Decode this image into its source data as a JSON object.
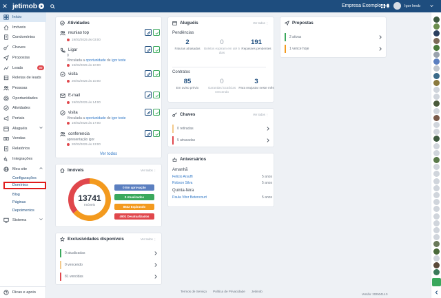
{
  "topbar": {
    "close_icon": "close-icon",
    "brand": "jetimob",
    "company": "Empresa Exemplo",
    "user": "Igor Imob"
  },
  "sidebar": {
    "items": [
      {
        "label": "Início",
        "icon": "grid-icon",
        "active": true
      },
      {
        "label": "Imóveis",
        "icon": "home-icon"
      },
      {
        "label": "Condomínios",
        "icon": "building-icon"
      },
      {
        "label": "Chaves",
        "icon": "key-icon"
      },
      {
        "label": "Propostas",
        "icon": "send-icon"
      },
      {
        "label": "Leads",
        "icon": "leads-icon",
        "badge": "99"
      },
      {
        "label": "Roletas de leads",
        "icon": "roulette-icon"
      },
      {
        "label": "Pessoas",
        "icon": "people-icon"
      },
      {
        "label": "Oportunidades",
        "icon": "target-icon"
      },
      {
        "label": "Atividades",
        "icon": "check-circle-icon"
      },
      {
        "label": "Portais",
        "icon": "megaphone-icon"
      },
      {
        "label": "Aluguéis",
        "icon": "rent-icon"
      },
      {
        "label": "Vendas",
        "icon": "sales-icon"
      },
      {
        "label": "Relatórios",
        "icon": "report-icon"
      },
      {
        "label": "Integrações",
        "icon": "integration-icon"
      },
      {
        "label": "Meu site",
        "icon": "globe-icon"
      }
    ],
    "site_sub": [
      "Configurações",
      "Domínios",
      "Blog",
      "Páginas",
      "Depoimentos"
    ],
    "sistema": "Sistema",
    "help": "Dicas e apoio"
  },
  "atividades": {
    "title": "Atividades",
    "view_all": "Ver todos",
    "items": [
      {
        "title": "reuniao top",
        "icon": "people-icon",
        "sub": "",
        "date": "19/03/2025 às 03:00"
      },
      {
        "title": "Ligar",
        "icon": "phone-icon",
        "sub": "0",
        "link_pre": "Vinculada a ",
        "link1": "oportunidade",
        "link_mid": " de ",
        "link2": "igor teste",
        "date": "19/03/2025 às 10:00"
      },
      {
        "title": "visita",
        "icon": "pin-icon",
        "sub": "",
        "date": "20/03/2025 às 10:00"
      },
      {
        "title": "E-mail",
        "icon": "mail-icon",
        "sub": "",
        "date": "19/03/2025 às 14:00"
      },
      {
        "title": "visita",
        "icon": "pin-icon",
        "sub": "",
        "link_pre": "Vinculada a ",
        "link1": "oportunidade",
        "link_mid": " de ",
        "link2": "igor teste",
        "date": "19/03/2025 às 17:00"
      },
      {
        "title": "conferencia",
        "icon": "people-icon",
        "sub": "apresentação igor",
        "date": "20/03/2025 às 13:00"
      }
    ]
  },
  "alugueis": {
    "title": "Aluguéis",
    "view_all": "Ver todos",
    "pendencias_label": "Pendências",
    "pendencias": [
      {
        "value": "2",
        "label": "Faturas atrasadas"
      },
      {
        "value": "0",
        "label": "Boletos expiram em até 5 dias"
      },
      {
        "value": "191",
        "label": "Repasses pendentes"
      }
    ],
    "contratos_label": "Contratos",
    "contratos": [
      {
        "value": "85",
        "label": "Em aviso prévio"
      },
      {
        "value": "0",
        "label": "Garantias locatícias vencendo"
      },
      {
        "value": "3",
        "label": "Para reajustar neste mês"
      }
    ]
  },
  "chaves": {
    "title": "Chaves",
    "view_all": "Ver todos",
    "rows": [
      {
        "label": "0 retiradas",
        "color": "#f3c98b"
      },
      {
        "label": "5 atrasadas",
        "color": "#e0474c"
      }
    ]
  },
  "aniversarios": {
    "title": "Aniversários",
    "groups": [
      {
        "label": "Amanhã",
        "people": [
          {
            "name": "Felicio Arsuffi",
            "age": "5 anos"
          },
          {
            "name": "Robson Silva",
            "age": "5 anos"
          }
        ]
      },
      {
        "label": "Quinta-feira",
        "people": [
          {
            "name": "Paula Vitor Betencourt",
            "age": "5 anos"
          }
        ]
      }
    ]
  },
  "propostas": {
    "title": "Propostas",
    "rows": [
      {
        "label": "2 ativas",
        "color": "#3aa85c"
      },
      {
        "label": "1 vence hoje",
        "color": "#f39a1e"
      }
    ]
  },
  "imoveis": {
    "title": "Imóveis",
    "view_all": "Ver todos",
    "total": "13741",
    "total_label": "Imóveis",
    "chart_data": {
      "type": "pie",
      "categories": [
        "Em aprovação",
        "Atualizados",
        "Expirando",
        "Desatualizados"
      ],
      "values": [
        0,
        0,
        8632,
        4901
      ],
      "colors": [
        "#5b7fc0",
        "#3aa85c",
        "#f39a1e",
        "#e0474c"
      ]
    },
    "legend": [
      "0 Em aprovação",
      "0 Atualizados",
      "8632 Expirando",
      "4901 Desatualizados"
    ]
  },
  "exclusividades": {
    "title": "Exclusividades disponíveis",
    "view_all": "Ver todos",
    "rows": [
      {
        "label": "0 atualizadas",
        "color": "#3aa85c"
      },
      {
        "label": "0 vencendo",
        "color": "#f3c98b"
      },
      {
        "label": "81 vencidas",
        "color": "#e0474c"
      }
    ]
  },
  "footer": {
    "links": [
      "Termos de Serviço",
      "Política de Privacidade",
      "Jetimob"
    ],
    "version": "Versão: 20250414.0"
  },
  "rail": {
    "colors": [
      "#3e5a40",
      "#6b8e4e",
      "#2a3f5f",
      "#7c6a58",
      "#4a7a3b",
      "#9aa3ae",
      "#5b7fc0",
      "#c0c6ce",
      "#3a6a8a",
      "#8b7a3e",
      "#d0d5dc",
      "#d0d5dc",
      "#4a5a3b",
      "#d0d5dc",
      "#7a5a4a",
      "#d0d5dc",
      "#d0d5dc",
      "#3e5a40",
      "#d0d5dc",
      "#d0d5dc",
      "#5a7a4a",
      "#d0d5dc",
      "#d0d5dc",
      "#d0d5dc",
      "#d0d5dc",
      "#d0d5dc",
      "#d0d5dc",
      "#d0d5dc",
      "#d0d5dc",
      "#d0d5dc",
      "#d0d5dc",
      "#d0d5dc",
      "#6a7a5a",
      "#4a6a3a",
      "#d0d5dc",
      "#5a4a3a",
      "#3a7a5a"
    ],
    "support_color": "#3aa85c"
  }
}
